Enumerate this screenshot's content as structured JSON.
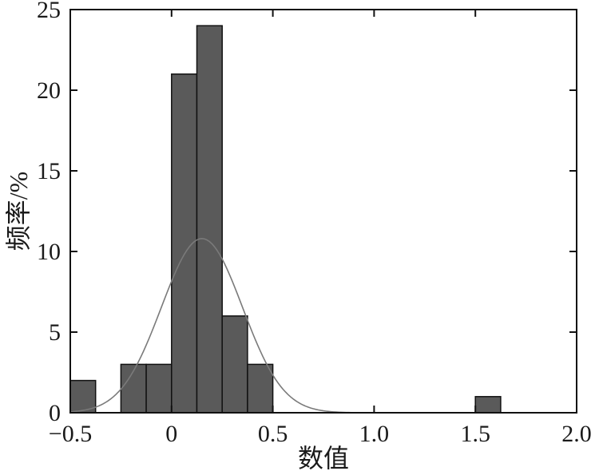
{
  "chart_data": {
    "type": "bar",
    "subtype": "histogram_with_normal_fit",
    "xlabel": "数值",
    "ylabel": "频率/%",
    "xlim": [
      -0.5,
      2.0
    ],
    "ylim": [
      0,
      25
    ],
    "x_ticks": [
      -0.5,
      0,
      0.5,
      1.0,
      1.5,
      2.0
    ],
    "x_tick_labels": [
      "−0.5",
      "0",
      "0.5",
      "1.0",
      "1.5",
      "2.0"
    ],
    "y_ticks": [
      0,
      5,
      10,
      15,
      20,
      25
    ],
    "y_tick_labels": [
      "0",
      "5",
      "10",
      "15",
      "20",
      "25"
    ],
    "bin_width": 0.125,
    "bins": [
      {
        "x_start": -0.5,
        "x_end": -0.375,
        "value": 2
      },
      {
        "x_start": -0.375,
        "x_end": -0.25,
        "value": 0
      },
      {
        "x_start": -0.25,
        "x_end": -0.125,
        "value": 3
      },
      {
        "x_start": -0.125,
        "x_end": 0.0,
        "value": 3
      },
      {
        "x_start": 0.0,
        "x_end": 0.125,
        "value": 21
      },
      {
        "x_start": 0.125,
        "x_end": 0.25,
        "value": 24
      },
      {
        "x_start": 0.25,
        "x_end": 0.375,
        "value": 6
      },
      {
        "x_start": 0.375,
        "x_end": 0.5,
        "value": 3
      },
      {
        "x_start": 1.5,
        "x_end": 1.625,
        "value": 1
      }
    ],
    "normal_curve": {
      "mean": 0.15,
      "sd": 0.2,
      "peak": 10.8
    },
    "grid": false,
    "legend": "none",
    "colors": {
      "bar_fill": "#5a5a5a",
      "bar_edge": "#111111",
      "curve": "#7a7a7a"
    }
  }
}
